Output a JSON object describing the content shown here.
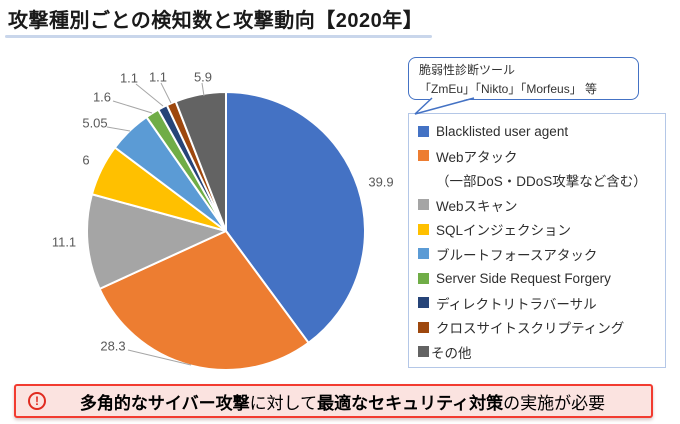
{
  "page": {
    "title": "攻撃種別ごとの検知数と攻撃動向【2020年】",
    "title_underline_color": "#C9D6EB",
    "background": "#FFFFFF"
  },
  "chart_data": {
    "type": "pie",
    "title": "攻撃種別ごとの検知数と攻撃動向【2020年】",
    "unit": "percent",
    "start_angle_deg": 0,
    "direction": "clockwise",
    "legend_position": "right",
    "label_color": "#595959",
    "legend_border_color": "#B4C7E7",
    "slices": [
      {
        "label": "Blacklisted user agent",
        "value": 39.9,
        "display": "39.9",
        "color": "#4472C4"
      },
      {
        "label": "Webアタック",
        "sublabel": "（一部DoS・DDoS攻撃など含む）",
        "value": 28.3,
        "display": "28.3",
        "color": "#ED7D31"
      },
      {
        "label": "Webスキャン",
        "value": 11.1,
        "display": "11.1",
        "color": "#A5A5A5"
      },
      {
        "label": "SQLインジェクション",
        "value": 6,
        "display": "6",
        "color": "#FFC000"
      },
      {
        "label": "ブルートフォースアタック",
        "value": 5.05,
        "display": "5.05",
        "color": "#5B9BD5"
      },
      {
        "label": "Server Side Request Forgery",
        "value": 1.6,
        "display": "1.6",
        "color": "#70AD47"
      },
      {
        "label": "ディレクトリトラバーサル",
        "value": 1.1,
        "display": "1.1",
        "color": "#264478"
      },
      {
        "label": "クロスサイトスクリプティング",
        "value": 1.1,
        "display": "1.1",
        "color": "#9E480E"
      },
      {
        "label": "その他",
        "value": 5.9,
        "display": "5.9",
        "color": "#636363"
      }
    ]
  },
  "callout": {
    "line1": "脆弱性診断ツール",
    "line2": "「ZmEu」「Nikto」「Morfeus」 等",
    "border_color": "#4472C4",
    "points_to": "Blacklisted user agent"
  },
  "banner": {
    "icon": "alert-circle",
    "segments": [
      {
        "text": "多角的なサイバー攻撃",
        "bold": true
      },
      {
        "text": "に対して",
        "bold": false
      },
      {
        "text": "最適なセキュリティ対策",
        "bold": true
      },
      {
        "text": "の実施が必要",
        "bold": false
      }
    ],
    "icon_glyph": "!",
    "background": "#FBE3E0",
    "border_color": "#F23B30"
  }
}
